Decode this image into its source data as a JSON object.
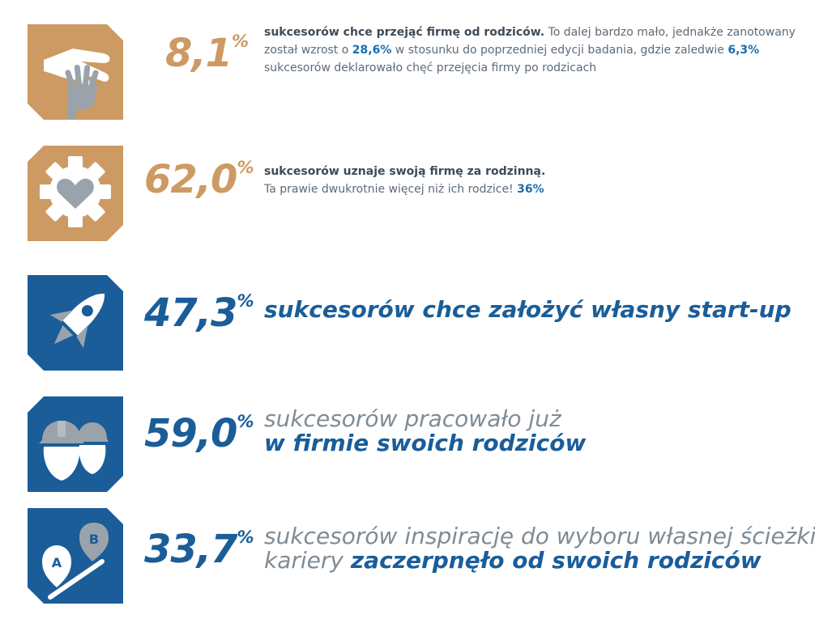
{
  "colors": {
    "gold": "#cd9a63",
    "blue": "#1a5d99",
    "grey": "#9aa3ab"
  },
  "items": [
    {
      "icon": "hands-icon",
      "percent": "8,1",
      "percent_sign": "%",
      "text_bold": "sukcesorów chce przejąć firmę od rodziców.",
      "text_1": " To dalej bardzo mało, jednakże zanotowany został wzrost o ",
      "highlight_1": "28,6%",
      "text_2": " w stosunku do poprzedniej edycji badania, gdzie zaledwie ",
      "highlight_2": "6,3%",
      "text_3": " sukcesorów deklarowało chęć przejęcia firmy po rodzicach"
    },
    {
      "icon": "gear-heart-icon",
      "percent": "62,0",
      "percent_sign": "%",
      "text_bold": "sukcesorów uznaje swoją firmę za rodzinną.",
      "text_1": "Ta prawie dwukrotnie więcej niż ich rodzice! ",
      "highlight_1": "36%"
    },
    {
      "icon": "rocket-icon",
      "percent": "47,3",
      "percent_sign": "%",
      "text_bold": "sukcesorów chce założyć własny start-up"
    },
    {
      "icon": "workers-helmet-icon",
      "percent": "59,0",
      "percent_sign": "%",
      "text_1": "sukcesorów pracowało już",
      "text_bold": "w firmie swoich rodziców"
    },
    {
      "icon": "route-pins-icon",
      "percent": "33,7",
      "percent_sign": "%",
      "text_1": "sukcesorów inspirację do wyboru własnej ścieżki",
      "text_2": "kariery ",
      "text_bold": "zaczerpnęło od swoich rodziców"
    }
  ]
}
